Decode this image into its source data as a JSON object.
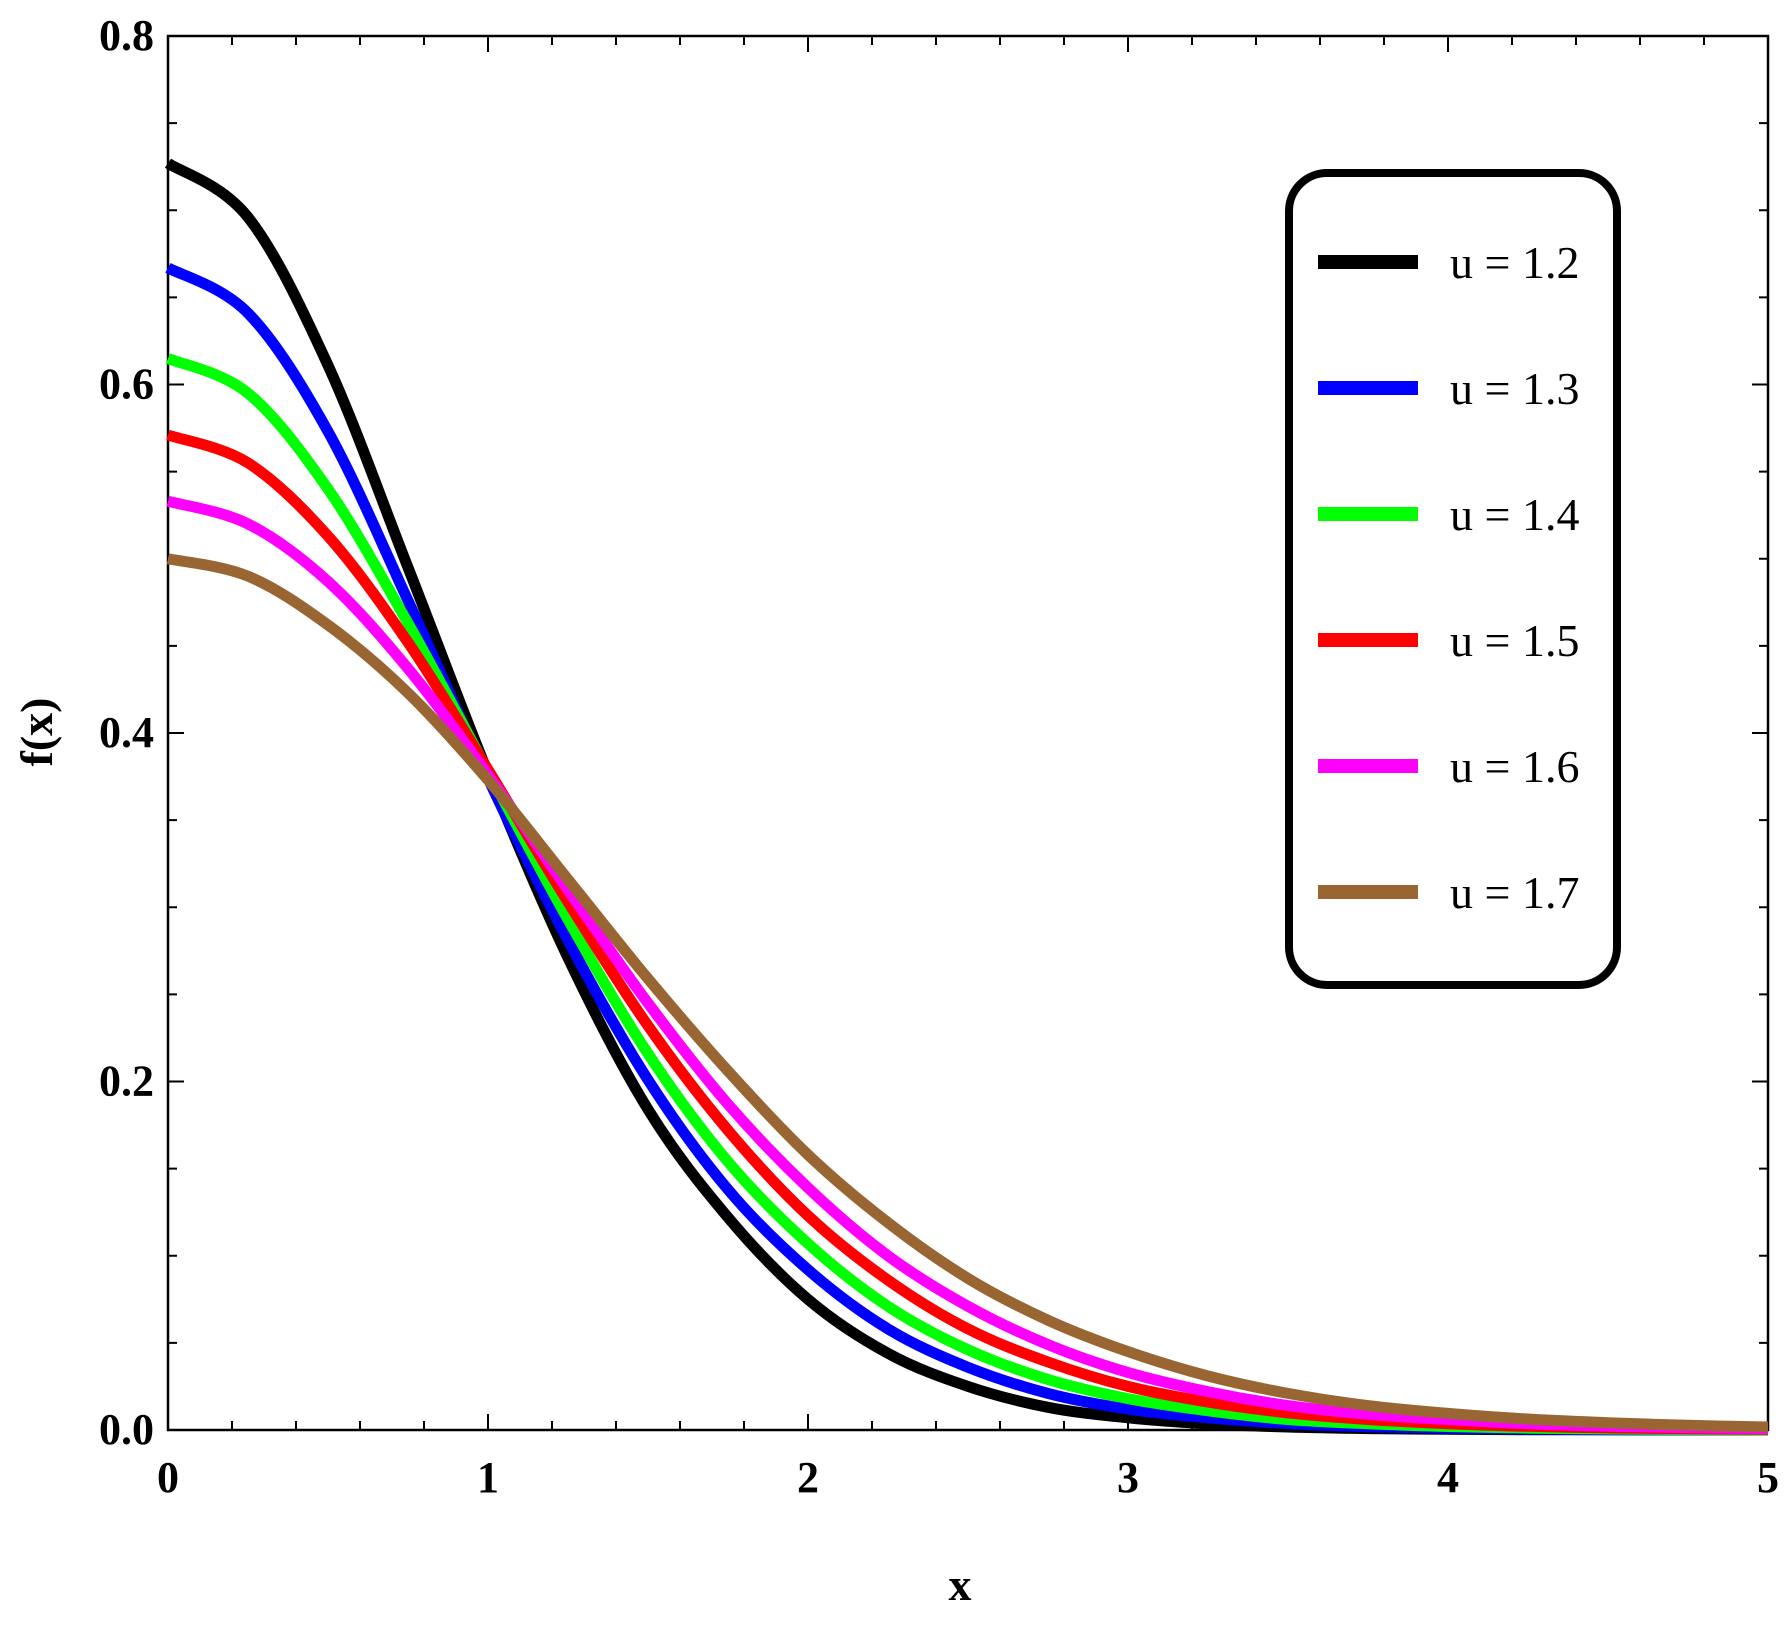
{
  "chart_data": {
    "type": "line",
    "xlabel": "x",
    "ylabel": "f(x)",
    "xlim": [
      0,
      5
    ],
    "ylim": [
      0,
      0.8
    ],
    "xticks": [
      0,
      1,
      2,
      3,
      4,
      5
    ],
    "xtick_labels": [
      "0",
      "1",
      "2",
      "3",
      "4",
      "5"
    ],
    "yticks": [
      0,
      0.2,
      0.4,
      0.6,
      0.8
    ],
    "ytick_labels": [
      "0.0",
      "0.2",
      "0.4",
      "0.6",
      "0.8"
    ],
    "grid": false,
    "legend_position": "top-right",
    "x": [
      0,
      0.25,
      0.5,
      0.75,
      1.0,
      1.25,
      1.5,
      1.75,
      2.0,
      2.25,
      2.5,
      2.75,
      3.0,
      3.25,
      3.5,
      3.75,
      4.0,
      4.25,
      4.5,
      4.75,
      5.0
    ],
    "series": [
      {
        "name": "u = 1.2",
        "color": "#000000",
        "values": [
          0.727,
          0.696,
          0.611,
          0.495,
          0.377,
          0.271,
          0.184,
          0.122,
          0.075,
          0.044,
          0.025,
          0.013,
          0.007,
          0.0035,
          0.0017,
          0.0008,
          0.0004,
          0.0002,
          0.0001,
          5e-05,
          2e-05
        ]
      },
      {
        "name": "u = 1.3",
        "color": "#0000ff",
        "values": [
          0.667,
          0.641,
          0.573,
          0.476,
          0.374,
          0.281,
          0.201,
          0.138,
          0.092,
          0.058,
          0.036,
          0.021,
          0.012,
          0.007,
          0.0037,
          0.0019,
          0.001,
          0.0005,
          0.0002,
          0.0001,
          5e-05
        ]
      },
      {
        "name": "u = 1.4",
        "color": "#00ff00",
        "values": [
          0.615,
          0.595,
          0.54,
          0.463,
          0.378,
          0.293,
          0.216,
          0.154,
          0.107,
          0.071,
          0.046,
          0.029,
          0.018,
          0.011,
          0.006,
          0.0036,
          0.002,
          0.0011,
          0.0006,
          0.0003,
          0.00015
        ]
      },
      {
        "name": "u = 1.5",
        "color": "#ff0000",
        "values": [
          0.571,
          0.555,
          0.513,
          0.452,
          0.379,
          0.303,
          0.232,
          0.172,
          0.123,
          0.086,
          0.058,
          0.039,
          0.025,
          0.016,
          0.0098,
          0.006,
          0.0036,
          0.0021,
          0.0012,
          0.0007,
          0.0004
        ]
      },
      {
        "name": "u = 1.6",
        "color": "#ff00ff",
        "values": [
          0.533,
          0.52,
          0.487,
          0.437,
          0.376,
          0.31,
          0.245,
          0.187,
          0.139,
          0.1,
          0.071,
          0.049,
          0.033,
          0.022,
          0.014,
          0.009,
          0.006,
          0.0036,
          0.0022,
          0.0014,
          0.0008
        ]
      },
      {
        "name": "u = 1.7",
        "color": "#996633",
        "values": [
          0.5,
          0.49,
          0.462,
          0.423,
          0.373,
          0.316,
          0.259,
          0.206,
          0.158,
          0.119,
          0.087,
          0.063,
          0.045,
          0.031,
          0.021,
          0.014,
          0.0095,
          0.0063,
          0.0042,
          0.0027,
          0.0017
        ]
      }
    ]
  }
}
